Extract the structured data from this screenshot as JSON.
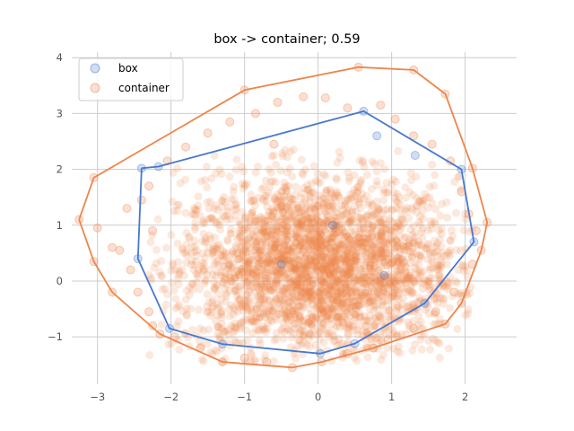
{
  "chart_data": {
    "type": "scatter",
    "title": "box -> container; 0.59",
    "xlabel": "",
    "ylabel": "",
    "xlim": [
      -3.35,
      2.7
    ],
    "ylim": [
      -1.85,
      4.1
    ],
    "xticks": [
      -3,
      -2,
      -1,
      0,
      1,
      2
    ],
    "yticks": [
      -1,
      0,
      1,
      2,
      3,
      4
    ],
    "xtick_labels": [
      "−3",
      "−2",
      "−1",
      "0",
      "1",
      "2"
    ],
    "ytick_labels": [
      "−1",
      "0",
      "1",
      "2",
      "3",
      "4"
    ],
    "grid": true,
    "legend": {
      "placement": "top-left",
      "entries": [
        "box",
        "container"
      ]
    },
    "series": [
      {
        "name": "box",
        "color": "#4878cf",
        "hull": [
          [
            -2.4,
            2.02
          ],
          [
            -2.17,
            2.05
          ],
          [
            0.62,
            3.04
          ],
          [
            1.95,
            2.0
          ],
          [
            2.12,
            0.7
          ],
          [
            1.45,
            -0.4
          ],
          [
            0.5,
            -1.12
          ],
          [
            0.03,
            -1.3
          ],
          [
            -1.3,
            -1.13
          ],
          [
            -2.02,
            -0.85
          ],
          [
            -2.45,
            0.4
          ]
        ],
        "points": [
          [
            -2.4,
            2.02
          ],
          [
            -2.17,
            2.05
          ],
          [
            0.62,
            3.04
          ],
          [
            1.95,
            2.0
          ],
          [
            2.12,
            0.7
          ],
          [
            1.45,
            -0.4
          ],
          [
            0.5,
            -1.12
          ],
          [
            0.03,
            -1.3
          ],
          [
            -1.3,
            -1.13
          ],
          [
            -2.02,
            -0.85
          ],
          [
            -2.45,
            0.4
          ],
          [
            1.32,
            2.25
          ],
          [
            0.8,
            2.6
          ],
          [
            -0.5,
            0.3
          ],
          [
            0.2,
            1.0
          ],
          [
            0.9,
            0.1
          ]
        ]
      },
      {
        "name": "container",
        "color": "#ee854a",
        "hull": [
          [
            -3.25,
            1.1
          ],
          [
            -3.05,
            1.85
          ],
          [
            -1.0,
            3.42
          ],
          [
            0.55,
            3.83
          ],
          [
            1.3,
            3.78
          ],
          [
            1.73,
            3.35
          ],
          [
            2.1,
            2.02
          ],
          [
            2.3,
            1.05
          ],
          [
            2.22,
            0.55
          ],
          [
            1.95,
            -0.4
          ],
          [
            1.73,
            -0.77
          ],
          [
            0.75,
            -1.2
          ],
          [
            0.05,
            -1.45
          ],
          [
            -0.35,
            -1.55
          ],
          [
            -1.3,
            -1.45
          ],
          [
            -2.15,
            -0.95
          ],
          [
            -2.8,
            -0.2
          ],
          [
            -3.05,
            0.35
          ]
        ],
        "points": [
          [
            -3.25,
            1.1
          ],
          [
            -3.05,
            1.85
          ],
          [
            -1.0,
            3.42
          ],
          [
            0.55,
            3.83
          ],
          [
            1.3,
            3.78
          ],
          [
            1.73,
            3.35
          ],
          [
            2.1,
            2.02
          ],
          [
            2.3,
            1.05
          ],
          [
            2.22,
            0.55
          ],
          [
            1.95,
            -0.4
          ],
          [
            1.73,
            -0.77
          ],
          [
            0.75,
            -1.2
          ],
          [
            0.05,
            -1.45
          ],
          [
            -0.35,
            -1.55
          ],
          [
            -1.3,
            -1.45
          ],
          [
            -2.15,
            -0.95
          ],
          [
            -2.8,
            -0.2
          ],
          [
            -3.05,
            0.35
          ],
          [
            -3.0,
            0.95
          ],
          [
            -2.8,
            0.6
          ],
          [
            -2.7,
            0.55
          ],
          [
            -2.55,
            0.2
          ],
          [
            -2.6,
            1.3
          ],
          [
            -2.3,
            1.7
          ],
          [
            -2.05,
            2.15
          ],
          [
            -1.8,
            2.4
          ],
          [
            -1.5,
            2.65
          ],
          [
            -1.2,
            2.85
          ],
          [
            -0.85,
            3.0
          ],
          [
            -0.55,
            3.2
          ],
          [
            -0.2,
            3.3
          ],
          [
            0.1,
            3.28
          ],
          [
            0.4,
            3.1
          ],
          [
            0.85,
            3.15
          ],
          [
            1.05,
            2.9
          ],
          [
            1.3,
            2.6
          ],
          [
            1.55,
            2.45
          ],
          [
            1.8,
            2.15
          ],
          [
            1.95,
            1.6
          ],
          [
            2.05,
            1.2
          ],
          [
            2.15,
            0.9
          ],
          [
            2.1,
            0.3
          ],
          [
            1.85,
            -0.2
          ],
          [
            1.6,
            -0.55
          ],
          [
            1.3,
            -0.85
          ],
          [
            0.95,
            -1.05
          ],
          [
            0.4,
            -1.3
          ],
          [
            -0.7,
            -1.45
          ],
          [
            -1.0,
            -1.38
          ],
          [
            -1.6,
            -1.2
          ],
          [
            -1.95,
            -1.0
          ],
          [
            -2.3,
            -0.55
          ],
          [
            -2.45,
            -0.2
          ],
          [
            -2.25,
            0.9
          ],
          [
            -2.4,
            1.45
          ],
          [
            -2.25,
            -0.8
          ],
          [
            -0.6,
            2.45
          ]
        ]
      }
    ]
  }
}
